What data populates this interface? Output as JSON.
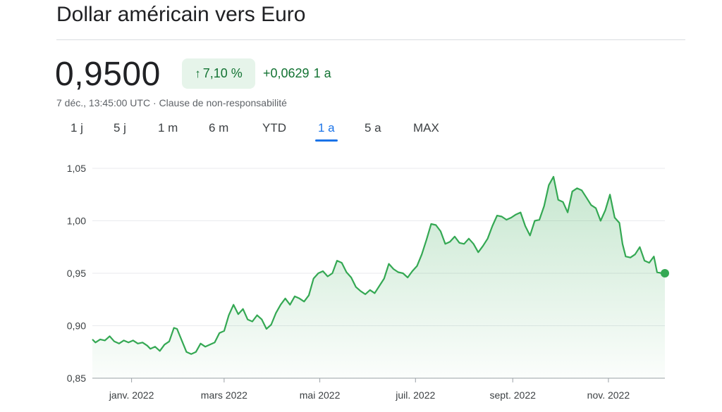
{
  "header": {
    "title": "Dollar américain vers Euro",
    "price": "0,9500",
    "percent_change": "7,10 %",
    "absolute_change": "+0,0629",
    "period_label": "1 a",
    "timestamp": "7 déc., 13:45:00 UTC",
    "separator": " · ",
    "disclaimer": "Clause de non-responsabilité"
  },
  "tabs": [
    {
      "label": "1 j",
      "active": false
    },
    {
      "label": "5 j",
      "active": false
    },
    {
      "label": "1 m",
      "active": false
    },
    {
      "label": "6 m",
      "active": false
    },
    {
      "label": "YTD",
      "active": false
    },
    {
      "label": "1 a",
      "active": true
    },
    {
      "label": "5 a",
      "active": false
    },
    {
      "label": "MAX",
      "active": false
    }
  ],
  "colors": {
    "line": "#34a853",
    "fill_top": "#34a853",
    "positive_text": "#137333",
    "badge_bg": "#e6f4ea",
    "active_tab": "#1a73e8",
    "grid": "#e8eaed"
  },
  "chart_data": {
    "type": "area",
    "ylim": [
      0.85,
      1.05
    ],
    "yticks": [
      {
        "value": 1.05,
        "label": "1,05"
      },
      {
        "value": 1.0,
        "label": "1,00"
      },
      {
        "value": 0.95,
        "label": "0,95"
      },
      {
        "value": 0.9,
        "label": "0,90"
      },
      {
        "value": 0.85,
        "label": "0,85"
      }
    ],
    "xlim": [
      "2021-12-07",
      "2022-12-07"
    ],
    "xticks": [
      {
        "date": "2022-01-01",
        "label": "janv. 2022"
      },
      {
        "date": "2022-03-01",
        "label": "mars 2022"
      },
      {
        "date": "2022-05-01",
        "label": "mai 2022"
      },
      {
        "date": "2022-07-01",
        "label": "juil. 2022"
      },
      {
        "date": "2022-09-01",
        "label": "sept. 2022"
      },
      {
        "date": "2022-11-01",
        "label": "nov. 2022"
      }
    ],
    "grid": true,
    "series": [
      {
        "points": [
          [
            "2021-12-07",
            0.887
          ],
          [
            "2021-12-09",
            0.884
          ],
          [
            "2021-12-12",
            0.887
          ],
          [
            "2021-12-15",
            0.886
          ],
          [
            "2021-12-18",
            0.89
          ],
          [
            "2021-12-21",
            0.885
          ],
          [
            "2021-12-24",
            0.883
          ],
          [
            "2021-12-27",
            0.886
          ],
          [
            "2021-12-30",
            0.884
          ],
          [
            "2022-01-02",
            0.886
          ],
          [
            "2022-01-05",
            0.883
          ],
          [
            "2022-01-08",
            0.884
          ],
          [
            "2022-01-11",
            0.881
          ],
          [
            "2022-01-13",
            0.878
          ],
          [
            "2022-01-16",
            0.88
          ],
          [
            "2022-01-19",
            0.876
          ],
          [
            "2022-01-22",
            0.882
          ],
          [
            "2022-01-25",
            0.885
          ],
          [
            "2022-01-28",
            0.898
          ],
          [
            "2022-01-30",
            0.897
          ],
          [
            "2022-02-02",
            0.886
          ],
          [
            "2022-02-05",
            0.875
          ],
          [
            "2022-02-08",
            0.873
          ],
          [
            "2022-02-11",
            0.875
          ],
          [
            "2022-02-14",
            0.883
          ],
          [
            "2022-02-17",
            0.88
          ],
          [
            "2022-02-20",
            0.882
          ],
          [
            "2022-02-23",
            0.884
          ],
          [
            "2022-02-26",
            0.893
          ],
          [
            "2022-03-01",
            0.895
          ],
          [
            "2022-03-04",
            0.91
          ],
          [
            "2022-03-07",
            0.92
          ],
          [
            "2022-03-10",
            0.911
          ],
          [
            "2022-03-13",
            0.916
          ],
          [
            "2022-03-16",
            0.906
          ],
          [
            "2022-03-19",
            0.904
          ],
          [
            "2022-03-22",
            0.91
          ],
          [
            "2022-03-25",
            0.906
          ],
          [
            "2022-03-28",
            0.897
          ],
          [
            "2022-03-31",
            0.901
          ],
          [
            "2022-04-03",
            0.912
          ],
          [
            "2022-04-06",
            0.92
          ],
          [
            "2022-04-09",
            0.926
          ],
          [
            "2022-04-12",
            0.92
          ],
          [
            "2022-04-15",
            0.928
          ],
          [
            "2022-04-18",
            0.926
          ],
          [
            "2022-04-21",
            0.923
          ],
          [
            "2022-04-24",
            0.929
          ],
          [
            "2022-04-27",
            0.945
          ],
          [
            "2022-04-30",
            0.95
          ],
          [
            "2022-05-03",
            0.952
          ],
          [
            "2022-05-06",
            0.947
          ],
          [
            "2022-05-09",
            0.95
          ],
          [
            "2022-05-12",
            0.962
          ],
          [
            "2022-05-15",
            0.96
          ],
          [
            "2022-05-18",
            0.951
          ],
          [
            "2022-05-21",
            0.946
          ],
          [
            "2022-05-24",
            0.937
          ],
          [
            "2022-05-27",
            0.933
          ],
          [
            "2022-05-30",
            0.93
          ],
          [
            "2022-06-02",
            0.934
          ],
          [
            "2022-06-05",
            0.931
          ],
          [
            "2022-06-08",
            0.938
          ],
          [
            "2022-06-11",
            0.945
          ],
          [
            "2022-06-14",
            0.959
          ],
          [
            "2022-06-17",
            0.954
          ],
          [
            "2022-06-20",
            0.951
          ],
          [
            "2022-06-23",
            0.95
          ],
          [
            "2022-06-26",
            0.946
          ],
          [
            "2022-06-29",
            0.952
          ],
          [
            "2022-07-02",
            0.957
          ],
          [
            "2022-07-05",
            0.968
          ],
          [
            "2022-07-08",
            0.982
          ],
          [
            "2022-07-11",
            0.997
          ],
          [
            "2022-07-14",
            0.996
          ],
          [
            "2022-07-17",
            0.99
          ],
          [
            "2022-07-20",
            0.978
          ],
          [
            "2022-07-23",
            0.98
          ],
          [
            "2022-07-26",
            0.985
          ],
          [
            "2022-07-29",
            0.979
          ],
          [
            "2022-08-01",
            0.978
          ],
          [
            "2022-08-04",
            0.983
          ],
          [
            "2022-08-07",
            0.978
          ],
          [
            "2022-08-10",
            0.97
          ],
          [
            "2022-08-13",
            0.976
          ],
          [
            "2022-08-16",
            0.983
          ],
          [
            "2022-08-19",
            0.995
          ],
          [
            "2022-08-22",
            1.005
          ],
          [
            "2022-08-25",
            1.004
          ],
          [
            "2022-08-28",
            1.001
          ],
          [
            "2022-08-31",
            1.003
          ],
          [
            "2022-09-03",
            1.006
          ],
          [
            "2022-09-06",
            1.008
          ],
          [
            "2022-09-09",
            0.995
          ],
          [
            "2022-09-12",
            0.986
          ],
          [
            "2022-09-15",
            1.0
          ],
          [
            "2022-09-18",
            1.001
          ],
          [
            "2022-09-21",
            1.014
          ],
          [
            "2022-09-24",
            1.034
          ],
          [
            "2022-09-27",
            1.042
          ],
          [
            "2022-09-30",
            1.02
          ],
          [
            "2022-10-03",
            1.018
          ],
          [
            "2022-10-06",
            1.008
          ],
          [
            "2022-10-09",
            1.028
          ],
          [
            "2022-10-12",
            1.031
          ],
          [
            "2022-10-15",
            1.029
          ],
          [
            "2022-10-18",
            1.022
          ],
          [
            "2022-10-21",
            1.015
          ],
          [
            "2022-10-24",
            1.012
          ],
          [
            "2022-10-27",
            1.0
          ],
          [
            "2022-10-30",
            1.01
          ],
          [
            "2022-11-02",
            1.025
          ],
          [
            "2022-11-05",
            1.003
          ],
          [
            "2022-11-08",
            0.998
          ],
          [
            "2022-11-10",
            0.978
          ],
          [
            "2022-11-12",
            0.966
          ],
          [
            "2022-11-15",
            0.965
          ],
          [
            "2022-11-18",
            0.968
          ],
          [
            "2022-11-21",
            0.975
          ],
          [
            "2022-11-24",
            0.962
          ],
          [
            "2022-11-27",
            0.96
          ],
          [
            "2022-11-30",
            0.966
          ],
          [
            "2022-12-02",
            0.951
          ],
          [
            "2022-12-05",
            0.95
          ],
          [
            "2022-12-07",
            0.95
          ]
        ]
      }
    ]
  }
}
